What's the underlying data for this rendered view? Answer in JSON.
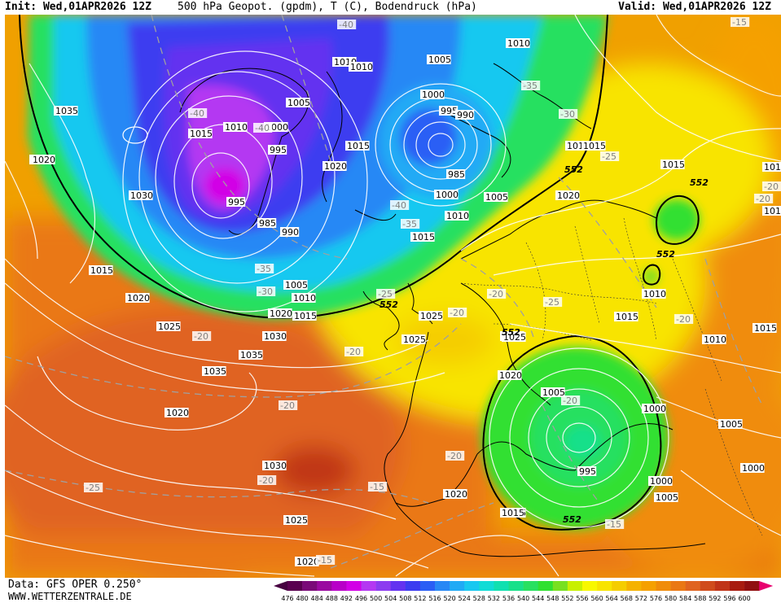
{
  "header": {
    "init": "Init: Wed,01APR2026 12Z",
    "title": "500 hPa Geopot. (gpdm), T (C), Bodendruck (hPa)",
    "valid": "Valid: Wed,01APR2026 12Z"
  },
  "footer": {
    "data_source": "Data: GFS OPER 0.250°",
    "website": "WWW.WETTERZENTRALE.DE"
  },
  "colorbar": {
    "ticks": [
      "476",
      "480",
      "484",
      "488",
      "492",
      "496",
      "500",
      "504",
      "508",
      "512",
      "516",
      "520",
      "524",
      "528",
      "532",
      "536",
      "540",
      "544",
      "548",
      "552",
      "556",
      "560",
      "564",
      "568",
      "572",
      "576",
      "580",
      "584",
      "588",
      "592",
      "596",
      "600"
    ],
    "colors": [
      "#5a0050",
      "#7a0a78",
      "#9a0aa0",
      "#b800c8",
      "#d200e6",
      "#b438f2",
      "#8c3cf0",
      "#6432f0",
      "#3c3cf0",
      "#2a5ef5",
      "#2888f5",
      "#20aaf5",
      "#18c8f0",
      "#10dcd6",
      "#10e0b0",
      "#18e08a",
      "#28e060",
      "#30e030",
      "#78e020",
      "#c8f000",
      "#f8f800",
      "#f8e400",
      "#f5cd00",
      "#f5b200",
      "#f5a000",
      "#f08c0a",
      "#ea7814",
      "#e06420",
      "#d04c1c",
      "#c03418",
      "#a81c10",
      "#901010"
    ],
    "arrow_colors": [
      "#460040",
      "#e8006e"
    ]
  },
  "map": {
    "pressure_labels": [
      "1035",
      "1015",
      "1010",
      "1000",
      "1010",
      "1005",
      "1010",
      "1010",
      "1005",
      "1000",
      "995",
      "990",
      "1015",
      "1015",
      "1020",
      "995",
      "1020",
      "1030",
      "995",
      "985",
      "990",
      "1000",
      "985",
      "1005",
      "1010",
      "1015",
      "1015",
      "1020",
      "1025",
      "1020",
      "1005",
      "1010",
      "1015",
      "1020",
      "1015",
      "1020",
      "1025",
      "1030",
      "1035",
      "1035",
      "1020",
      "1010",
      "1005",
      "1000",
      "995",
      "1000",
      "1005",
      "1005",
      "1000",
      "1015",
      "1020",
      "1030",
      "1025",
      "1020",
      "1015",
      "1015",
      "1015",
      "1010",
      "1010",
      "1020",
      "1025",
      "1025",
      "1015",
      "101",
      "101"
    ],
    "height_labels": [
      "552",
      "552",
      "552",
      "552",
      "552",
      "552"
    ],
    "temp_labels": [
      "-40",
      "-40",
      "-40",
      "-35",
      "-30",
      "-35",
      "-40",
      "-35",
      "-30",
      "-25",
      "-20",
      "-25",
      "-25",
      "-20",
      "-20",
      "-20",
      "-20",
      "-20",
      "-20",
      "-20",
      "-20",
      "-25",
      "-20",
      "-15",
      "-15",
      "-15",
      "-15",
      "-20"
    ]
  }
}
